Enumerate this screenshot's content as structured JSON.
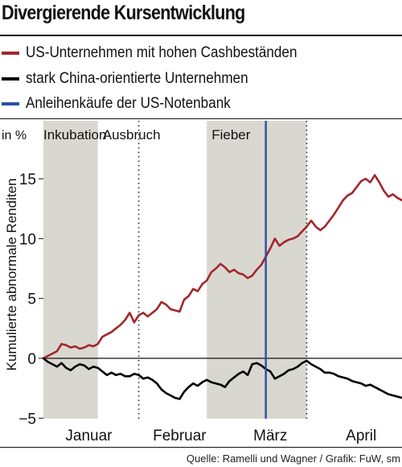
{
  "title": "Divergierende Kursentwicklung",
  "legend": [
    {
      "label": "US-Unternehmen mit hohen Cashbeständen",
      "color": "#a3262a"
    },
    {
      "label": "stark China-orientierte Unternehmen",
      "color": "#000000"
    },
    {
      "label": "Anleihenkäufe der US-Notenbank",
      "color": "#2b4fa8"
    }
  ],
  "source": "Quelle: Ramelli und Wagner / Grafik: FuW, sm",
  "chart_data": {
    "type": "line",
    "unit_label": "in %",
    "ylabel": "Kumulierte abnormale Renditen",
    "ylim": [
      -5,
      17
    ],
    "yticks": [
      -5,
      0,
      5,
      10,
      15
    ],
    "x_unit": "trading day (1 = 2 Jan 2020)",
    "xlim": [
      1,
      80
    ],
    "month_labels": [
      {
        "label": "Januar",
        "x": 11
      },
      {
        "label": "Februar",
        "x": 31
      },
      {
        "label": "März",
        "x": 51
      },
      {
        "label": "April",
        "x": 71
      }
    ],
    "phases": [
      {
        "label": "Inkubation",
        "x_start": 1,
        "x_end": 13,
        "shaded": true
      },
      {
        "label": "Ausbruch",
        "x_start": 13,
        "x_end": 37,
        "shaded": false
      },
      {
        "label": "Fieber",
        "x_start": 37,
        "x_end": 80,
        "shaded": false
      }
    ],
    "shaded_regions": [
      {
        "x_start": 1,
        "x_end": 13
      },
      {
        "x_start": 37,
        "x_end": 59
      }
    ],
    "dotted_lines": [
      22,
      59
    ],
    "event_line": {
      "x": 50,
      "color": "#2b4fa8"
    },
    "series": [
      {
        "name": "US-Unternehmen mit hohen Cashbeständen",
        "color": "#a3262a",
        "values": [
          0,
          0.2,
          0.4,
          0.6,
          1.2,
          1.1,
          0.9,
          1.0,
          0.8,
          0.9,
          1.1,
          1.0,
          1.2,
          1.8,
          2.0,
          2.2,
          2.5,
          2.8,
          3.2,
          3.8,
          3.0,
          3.6,
          3.8,
          3.5,
          3.8,
          4.1,
          4.7,
          4.5,
          4.1,
          4.0,
          3.9,
          4.9,
          5.2,
          5.8,
          5.6,
          6.2,
          6.5,
          7.2,
          7.5,
          7.9,
          7.6,
          7.2,
          7.4,
          7.1,
          7.0,
          6.7,
          6.9,
          7.4,
          7.8,
          8.5,
          9.2,
          10.0,
          9.4,
          9.7,
          9.9,
          10.0,
          10.2,
          10.6,
          11.0,
          11.5,
          11.0,
          10.7,
          11.0,
          11.5,
          12.0,
          12.6,
          13.2,
          13.6,
          13.8,
          14.3,
          14.8,
          15.0,
          14.7,
          15.3,
          14.7,
          14.0,
          13.5,
          13.7,
          13.4,
          13.2
        ],
        "x_start": 1
      },
      {
        "name": "stark China-orientierte Unternehmen",
        "color": "#000000",
        "values": [
          0,
          -0.3,
          -0.5,
          -0.7,
          -0.4,
          -0.8,
          -1.0,
          -0.7,
          -0.5,
          -0.6,
          -0.9,
          -0.7,
          -0.8,
          -1.1,
          -1.4,
          -1.2,
          -1.4,
          -1.3,
          -1.5,
          -1.5,
          -1.3,
          -1.4,
          -1.7,
          -1.6,
          -1.8,
          -2.1,
          -2.6,
          -2.9,
          -3.1,
          -3.3,
          -3.4,
          -2.8,
          -2.4,
          -2.1,
          -2.3,
          -2.0,
          -1.8,
          -2.0,
          -2.1,
          -2.2,
          -2.4,
          -1.9,
          -1.6,
          -1.3,
          -1.1,
          -1.4,
          -0.5,
          -0.4,
          -0.6,
          -0.9,
          -1.1,
          -1.7,
          -1.5,
          -1.3,
          -1.0,
          -0.9,
          -0.7,
          -0.4,
          -0.2,
          -0.5,
          -0.7,
          -0.9,
          -1.2,
          -1.2,
          -1.3,
          -1.5,
          -1.6,
          -1.7,
          -1.9,
          -2.0,
          -2.1,
          -2.3,
          -2.2,
          -2.4,
          -2.6,
          -2.8,
          -3.0,
          -3.1,
          -3.2,
          -3.3
        ],
        "x_start": 1
      }
    ]
  }
}
